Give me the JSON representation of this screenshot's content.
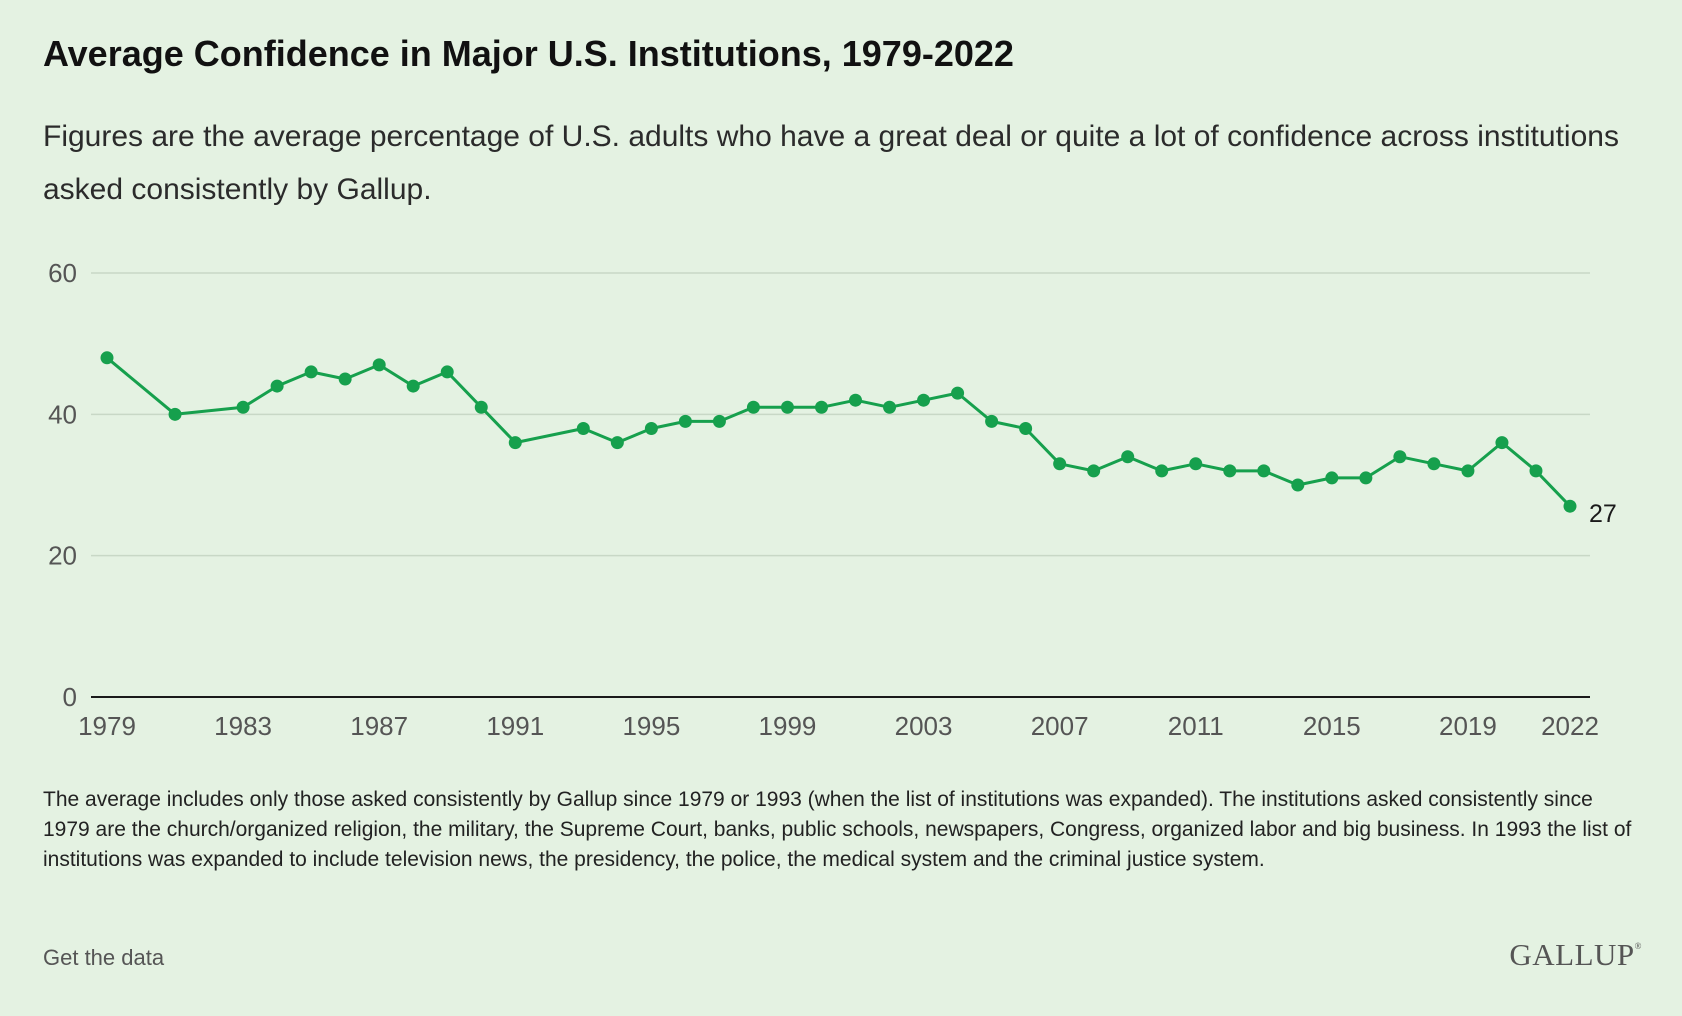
{
  "header": {
    "title": "Average Confidence in Major U.S. Institutions, 1979-2022",
    "subtitle": "Figures are the average percentage of U.S. adults who have a great deal or quite a lot of confidence across institutions asked consistently by Gallup."
  },
  "footer": {
    "note": "The average includes only those asked consistently by Gallup since 1979 or 1993 (when the list of institutions was expanded). The institutions asked consistently since 1979 are the church/organized religion, the military, the Supreme Court, banks, public schools, newspapers, Congress, organized labor and big business. In 1993 the list of institutions was expanded to include television news, the presidency, the police, the medical system and the criminal justice system.",
    "get_data_label": "Get the data",
    "logo_text": "GALLUP",
    "logo_mark": "®"
  },
  "colors": {
    "background": "#e4f2e2",
    "line": "#16a04d",
    "grid": "#c8d8c6",
    "axis": "#1a1a1a",
    "tick_text": "#555555"
  },
  "chart_data": {
    "type": "line",
    "title": "Average Confidence in Major U.S. Institutions, 1979-2022",
    "xlabel": "",
    "ylabel": "",
    "xlim": [
      1979,
      2022
    ],
    "ylim": [
      0,
      60
    ],
    "y_ticks": [
      0,
      20,
      40,
      60
    ],
    "x_ticks": [
      1979,
      1983,
      1987,
      1991,
      1995,
      1999,
      2003,
      2007,
      2011,
      2015,
      2019,
      2022
    ],
    "grid": true,
    "end_label": "27",
    "series": [
      {
        "x": [
          1979,
          1981,
          1983,
          1984,
          1985,
          1986,
          1987,
          1988,
          1989,
          1990,
          1991,
          1993,
          1994,
          1995,
          1996,
          1997,
          1998,
          1999,
          2000,
          2001,
          2002,
          2003,
          2004,
          2005,
          2006,
          2007,
          2008,
          2009,
          2010,
          2011,
          2012,
          2013,
          2014,
          2015,
          2016,
          2017,
          2018,
          2019,
          2020,
          2021,
          2022
        ],
        "values": [
          48,
          40,
          41,
          44,
          46,
          45,
          47,
          44,
          46,
          41,
          36,
          38,
          36,
          38,
          39,
          39,
          41,
          41,
          41,
          42,
          41,
          42,
          43,
          39,
          38,
          33,
          32,
          34,
          32,
          33,
          32,
          32,
          30,
          31,
          31,
          34,
          33,
          32,
          36,
          32,
          27
        ]
      }
    ]
  }
}
